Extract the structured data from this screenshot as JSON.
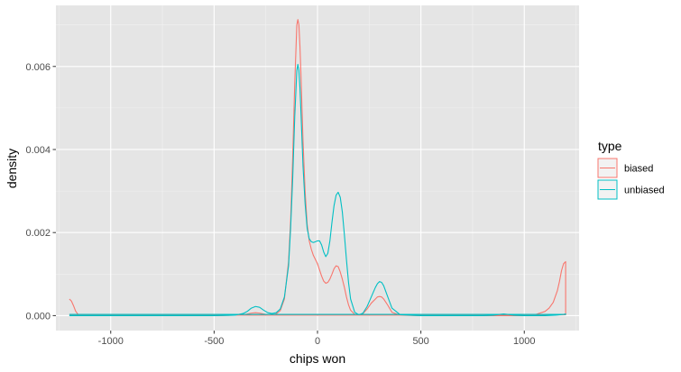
{
  "chart_data": {
    "type": "line",
    "subtype": "density",
    "xlabel": "chips won",
    "ylabel": "density",
    "xlim": [
      -1265,
      1265
    ],
    "ylim": [
      -0.00036,
      0.00747
    ],
    "x_ticks": [
      -1000,
      -500,
      0,
      500,
      1000
    ],
    "x_tick_labels": [
      "-1000",
      "-500",
      "0",
      "500",
      "1000"
    ],
    "y_ticks": [
      0,
      0.002,
      0.004,
      0.006
    ],
    "y_tick_labels": [
      "0.000",
      "0.002",
      "0.004",
      "0.006"
    ],
    "grid": true,
    "background": "#E5E5E5",
    "legend": {
      "title": "type",
      "position": "right",
      "entries": [
        "biased",
        "unbiased"
      ]
    },
    "series": [
      {
        "name": "biased",
        "color": "#F8766D",
        "x": [
          -1200,
          -1190,
          -1180,
          -1170,
          -1160,
          -1150,
          -1100,
          -1000,
          -500,
          -400,
          -350,
          -320,
          -300,
          -280,
          -250,
          -220,
          -200,
          -180,
          -160,
          -140,
          -130,
          -120,
          -110,
          -100,
          -95,
          -90,
          -85,
          -80,
          -70,
          -60,
          -50,
          -40,
          -30,
          -20,
          -10,
          0,
          10,
          20,
          30,
          40,
          50,
          60,
          70,
          80,
          90,
          100,
          110,
          120,
          130,
          140,
          150,
          160,
          180,
          200,
          220,
          240,
          260,
          280,
          290,
          300,
          310,
          320,
          340,
          360,
          400,
          500,
          800,
          900,
          1000,
          1050,
          1100,
          1120,
          1140,
          1160,
          1170,
          1180,
          1190,
          1200,
          1200,
          1100,
          1000,
          500,
          0,
          -500,
          -1000,
          -1200
        ],
        "y": [
          0.0004,
          0.00035,
          0.00024,
          0.00011,
          4e-05,
          1e-05,
          0,
          0,
          0,
          1e-05,
          3e-05,
          6e-05,
          7e-05,
          6e-05,
          3e-05,
          2e-05,
          4e-05,
          0.00012,
          0.0004,
          0.0013,
          0.0023,
          0.0038,
          0.0056,
          0.007,
          0.00713,
          0.007,
          0.0065,
          0.0058,
          0.0042,
          0.003,
          0.0022,
          0.0018,
          0.0016,
          0.00145,
          0.00135,
          0.00125,
          0.0011,
          0.00095,
          0.00083,
          0.00078,
          0.0008,
          0.00088,
          0.001,
          0.00113,
          0.0012,
          0.00118,
          0.00105,
          0.00088,
          0.00068,
          0.00045,
          0.00026,
          0.00013,
          3e-05,
          1e-05,
          5e-05,
          0.00016,
          0.0003,
          0.0004,
          0.00045,
          0.00046,
          0.00045,
          0.0004,
          0.00025,
          8e-05,
          1e-05,
          0,
          0,
          0,
          0,
          2e-05,
          0.0001,
          0.00018,
          0.00032,
          0.0006,
          0.00082,
          0.00108,
          0.00125,
          0.0013,
          2e-05,
          1e-05,
          1e-05,
          1e-05,
          1e-05,
          1e-05,
          1e-05,
          1e-05
        ]
      },
      {
        "name": "unbiased",
        "color": "#00BFC4",
        "x": [
          -1200,
          -1000,
          -500,
          -400,
          -360,
          -340,
          -320,
          -300,
          -280,
          -260,
          -240,
          -220,
          -200,
          -180,
          -160,
          -140,
          -130,
          -120,
          -110,
          -100,
          -95,
          -90,
          -85,
          -80,
          -70,
          -60,
          -50,
          -40,
          -30,
          -20,
          -10,
          0,
          10,
          20,
          30,
          40,
          50,
          60,
          70,
          80,
          90,
          100,
          110,
          120,
          130,
          140,
          150,
          160,
          180,
          200,
          220,
          240,
          260,
          280,
          290,
          300,
          310,
          320,
          340,
          360,
          400,
          500,
          800,
          850,
          880,
          900,
          920,
          950,
          1000,
          1100,
          1150,
          1190,
          1200,
          1200,
          1100,
          1000,
          500,
          0,
          -500,
          -1000,
          -1200
        ],
        "y": [
          0,
          0,
          0,
          1e-05,
          5e-05,
          0.0001,
          0.00018,
          0.00022,
          0.0002,
          0.00013,
          7e-05,
          5e-05,
          7e-05,
          0.00016,
          0.00045,
          0.0012,
          0.0021,
          0.0033,
          0.0048,
          0.0059,
          0.00605,
          0.0059,
          0.0055,
          0.0049,
          0.0036,
          0.0027,
          0.0021,
          0.00185,
          0.00178,
          0.00176,
          0.00178,
          0.0018,
          0.0018,
          0.0017,
          0.00153,
          0.00142,
          0.0015,
          0.0018,
          0.00225,
          0.00265,
          0.0029,
          0.00297,
          0.00285,
          0.0025,
          0.00195,
          0.00135,
          0.0008,
          0.0004,
          8e-05,
          2e-05,
          6e-05,
          0.00022,
          0.00045,
          0.00068,
          0.00077,
          0.00082,
          0.0008,
          0.00072,
          0.00045,
          0.00018,
          2e-05,
          0,
          0,
          1e-05,
          3e-05,
          4e-05,
          3e-05,
          1e-05,
          0,
          0,
          1e-05,
          3e-05,
          4e-05,
          3e-05,
          3e-05,
          3e-05,
          3e-05,
          3e-05,
          3e-05,
          3e-05,
          3e-05
        ]
      }
    ]
  }
}
